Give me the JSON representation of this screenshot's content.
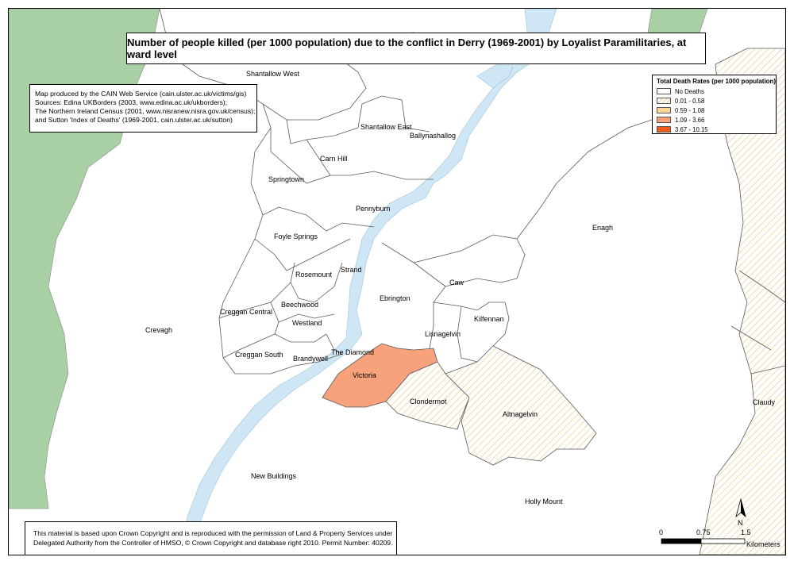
{
  "title": "Number of people killed (per 1000 population) due to the conflict in Derry (1969-2001) by Loyalist Paramilitaries, at ward level",
  "info": {
    "lines": [
      "Map produced by the CAIN Web Service (cain.ulster.ac.uk/victims/gis)",
      "Sources: Edina UKBorders (2003, www.edina.ac.uk/ukborders);",
      "The Northern Ireland Census (2001, www.nisranew.nisra.gov.uk/census);",
      "and Sutton 'Index of Deaths' (1969-2001, cain.ulster.ac.uk/sutton)"
    ]
  },
  "copyright": {
    "lines": [
      "This material is based upon Crown Copyright and is reproduced with the permission of Land & Property Services under",
      "Delegated Authority from the Controller of HMSO, © Crown Copyright and database right 2010. Permit Number: 40209."
    ]
  },
  "legend": {
    "title": "Total Death Rates (per 1000 population)",
    "classes": [
      {
        "label": "No Deaths",
        "color": "#ffffff"
      },
      {
        "label": "0.01 - 0.58",
        "color": "#e6cf8a"
      },
      {
        "label": "0.59 - 1.08",
        "color": "#fbd89a"
      },
      {
        "label": "1.09 - 3.66",
        "color": "#f8a27c"
      },
      {
        "label": "3.67 - 10.15",
        "color": "#ef5a1f"
      }
    ]
  },
  "colors": {
    "river": "#cfe6f4",
    "land_outside": "#a9cfa4",
    "ward_border": "#5a5a5a"
  },
  "wards": {
    "shantallow_west": "Shantallow West",
    "shantallow_east": "Shantallow East",
    "ballynashallog": "Ballynashallog",
    "carn_hill": "Carn Hill",
    "springtown": "Springtown",
    "pennyburn": "Pennyburn",
    "enagh": "Enagh",
    "foyle_springs": "Foyle Springs",
    "strand": "Strand",
    "rosemount": "Rosemount",
    "caw": "Caw",
    "creggan_central": "Creggan Central",
    "beechwood": "Beechwood",
    "ebrington": "Ebrington",
    "crevagh": "Crevagh",
    "westland": "Westland",
    "kilfennan": "Kilfennan",
    "lisnagelvin": "Lisnagelvin",
    "the_diamond": "The Diamond",
    "creggan_south": "Creggan South",
    "brandywell": "Brandywell",
    "victoria": "Victoria",
    "clondermot": "Clondermot",
    "altnagelvin": "Altnagelvin",
    "claudy": "Claudy",
    "new_buildings": "New Buildings",
    "holly_mount": "Holly Mount"
  },
  "scale": {
    "ticks": [
      "0",
      "0.75",
      "1.5"
    ],
    "unit": "Kilometers"
  },
  "north_label": "N"
}
